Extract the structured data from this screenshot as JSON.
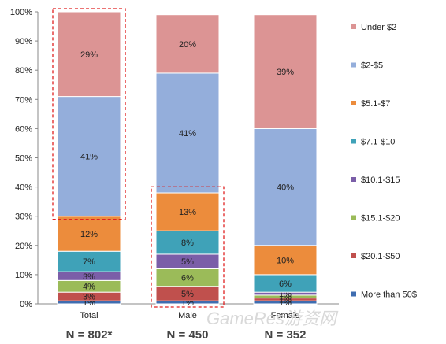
{
  "chart_data": {
    "type": "bar",
    "stacked": true,
    "categories": [
      "Total",
      "Male",
      "Female"
    ],
    "sample_sizes": [
      "N = 802*",
      "N = 450",
      "N = 352"
    ],
    "y_ticks": [
      "0%",
      "10%",
      "20%",
      "30%",
      "40%",
      "50%",
      "60%",
      "70%",
      "80%",
      "90%",
      "100%"
    ],
    "ylim": [
      0,
      100
    ],
    "grid": false,
    "legend_position": "right",
    "series": [
      {
        "name": "More than 50$",
        "color": "#3f6db0",
        "values": [
          1,
          1,
          1
        ],
        "labels": [
          "1%",
          "1%",
          "1%"
        ]
      },
      {
        "name": "$20.1-$50",
        "color": "#c0504d",
        "values": [
          3,
          5,
          1
        ],
        "labels": [
          "3%",
          "5%",
          "1%"
        ]
      },
      {
        "name": "$15.1-$20",
        "color": "#9bbb59",
        "values": [
          4,
          6,
          1
        ],
        "labels": [
          "4%",
          "6%",
          "1%"
        ]
      },
      {
        "name": "$10.1-$15",
        "color": "#7b5ea8",
        "values": [
          3,
          5,
          1
        ],
        "labels": [
          "3%",
          "5%",
          "1%"
        ]
      },
      {
        "name": "$7.1-$10",
        "color": "#3fa2b8",
        "values": [
          7,
          8,
          6
        ],
        "labels": [
          "7%",
          "8%",
          "6%"
        ]
      },
      {
        "name": "$5.1-$7",
        "color": "#ec8c3c",
        "values": [
          12,
          13,
          10
        ],
        "labels": [
          "12%",
          "13%",
          "10%"
        ]
      },
      {
        "name": "$2-$5",
        "color": "#94aedb",
        "values": [
          41,
          41,
          40
        ],
        "labels": [
          "41%",
          "41%",
          "40%"
        ]
      },
      {
        "name": "Under $2",
        "color": "#dc9494",
        "values": [
          29,
          20,
          39
        ],
        "labels": [
          "29%",
          "20%",
          "39%"
        ]
      }
    ],
    "highlights": [
      {
        "category": "Total",
        "from_value": 30,
        "to_value": 100,
        "color": "#e02020"
      },
      {
        "category": "Male",
        "from_value": 0,
        "to_value": 39,
        "color": "#e02020"
      }
    ]
  },
  "watermark": {
    "text": "GameRes游资网"
  }
}
